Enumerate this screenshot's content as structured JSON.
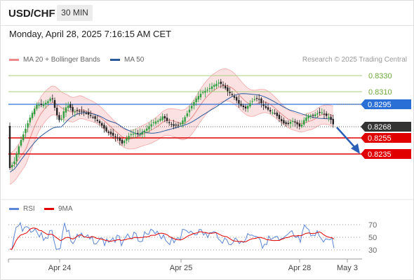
{
  "header": {
    "symbol": "USD/CHF",
    "timeframe": "30 MIN"
  },
  "datetime": "Monday, April 28, 2025 7:16:15 AM CET",
  "legend": {
    "bollinger": {
      "label": "MA 20 + Bollinger Bands",
      "color": "#f08a8a"
    },
    "ma50": {
      "label": "MA 50",
      "color": "#2b5a9e"
    }
  },
  "research": "Research © 2025 Trading Central",
  "colors": {
    "up": "#2e9e3e",
    "down": "#222222",
    "support": "#e00000",
    "pivot": "#2a6fd6",
    "resistance": "#8fbf5a",
    "current": "#333333"
  },
  "levels": {
    "r2": "0.8330",
    "r1": "0.8310",
    "pivot": "0.8295",
    "current": "0.8268",
    "s1": "0.8255",
    "s2": "0.8235"
  },
  "rsi_legend": {
    "rsi": {
      "label": "RSI",
      "color": "#5b86d6"
    },
    "ma9": {
      "label": "9MA",
      "color": "#e00000"
    }
  },
  "rsi_levels": [
    "70",
    "50",
    "30"
  ],
  "x_labels": [
    "Apr 24",
    "Apr 25",
    "Apr 28",
    "May 3"
  ]
}
